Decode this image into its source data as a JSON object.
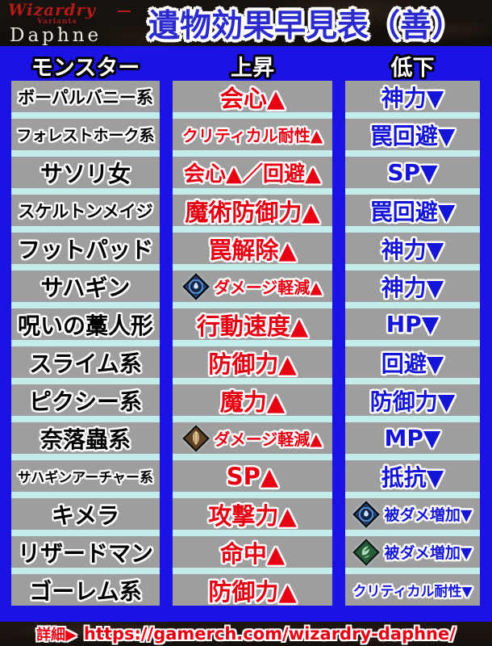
{
  "logo": {
    "line1": "Wizardry",
    "line2": "Variants",
    "line3": "Daphne"
  },
  "title": "遺物効果早見表（善）",
  "columns": {
    "monster": "モンスター",
    "up": "上昇",
    "down": "低下"
  },
  "rows": [
    {
      "monster": "ボーパルバニー系",
      "up": {
        "text": "会心▲"
      },
      "down": {
        "text": "神力▼"
      }
    },
    {
      "monster": "フォレストホーク系",
      "up": {
        "text": "クリティカル耐性▲"
      },
      "down": {
        "text": "罠回避▼"
      }
    },
    {
      "monster": "サソリ女",
      "up": {
        "text": "会心▲／回避▲"
      },
      "down": {
        "text": "SP▼"
      }
    },
    {
      "monster": "スケルトンメイジ",
      "up": {
        "text": "魔術防御力▲"
      },
      "down": {
        "text": "罠回避▼"
      }
    },
    {
      "monster": "フットパッド",
      "up": {
        "text": "罠解除▲"
      },
      "down": {
        "text": "神力▼"
      }
    },
    {
      "monster": "サハギン",
      "up": {
        "icon": "water",
        "text": "ダメージ軽減▲"
      },
      "down": {
        "text": "神力▼"
      }
    },
    {
      "monster": "呪いの藁人形",
      "up": {
        "text": "行動速度▲"
      },
      "down": {
        "text": "HP▼"
      }
    },
    {
      "monster": "スライム系",
      "up": {
        "text": "防御力▲"
      },
      "down": {
        "text": "回避▼"
      }
    },
    {
      "monster": "ピクシー系",
      "up": {
        "text": "魔力▲"
      },
      "down": {
        "text": "防御力▼"
      }
    },
    {
      "monster": "奈落蟲系",
      "up": {
        "icon": "earth",
        "text": "ダメージ軽減▲"
      },
      "down": {
        "text": "MP▼"
      }
    },
    {
      "monster": "サハギンアーチャー系",
      "up": {
        "text": "SP▲"
      },
      "down": {
        "text": "抵抗▼"
      }
    },
    {
      "monster": "キメラ",
      "up": {
        "text": "攻撃力▲"
      },
      "down": {
        "icon": "water",
        "text": "被ダメ増加▼"
      }
    },
    {
      "monster": "リザードマン",
      "up": {
        "text": "命中▲"
      },
      "down": {
        "icon": "wind",
        "text": "被ダメ増加▼"
      }
    },
    {
      "monster": "ゴーレム系",
      "up": {
        "text": "防御力▲"
      },
      "down": {
        "text": "クリティカル耐性▼"
      }
    }
  ],
  "icons": {
    "water": "water-element-diamond-icon",
    "earth": "earth-element-diamond-icon",
    "wind": "wind-element-diamond-icon"
  },
  "footer": {
    "label": "詳細▶",
    "url": "https://gamerch.com/wizardry-daphne/"
  },
  "colors": {
    "bg-blue": "#1b12e4",
    "cell-gray": "#9e9e9e",
    "sep-cyan": "#c4ecea",
    "up-red": "#e60012",
    "down-blue": "#1515d8",
    "title-blue": "#2a2ace",
    "footer-red": "#e60012"
  }
}
